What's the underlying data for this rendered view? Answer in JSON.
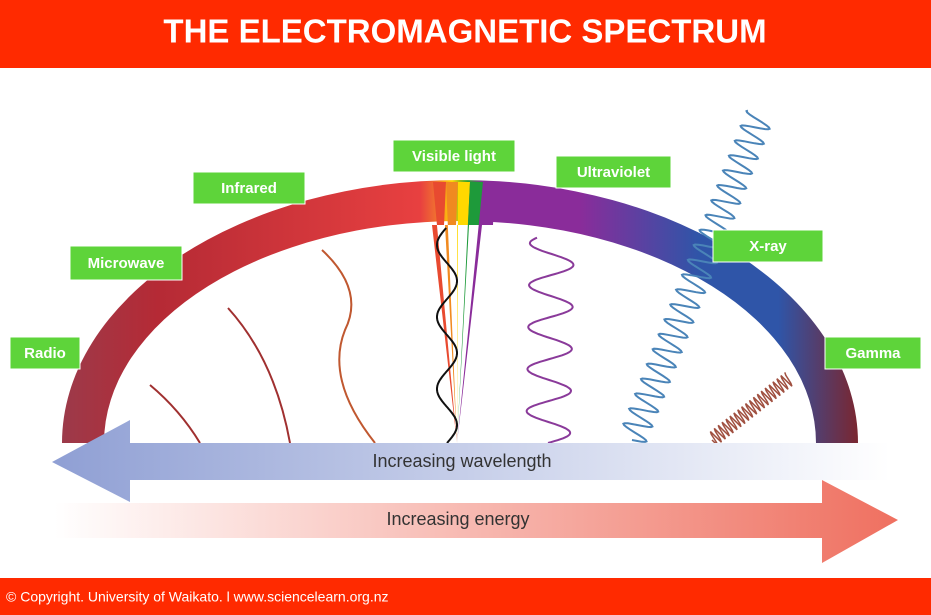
{
  "header": {
    "title": "THE ELECTROMAGNETIC SPECTRUM"
  },
  "labels": [
    "Radio",
    "Microwave",
    "Infrared",
    "Visible light",
    "Ultraviolet",
    "X-ray",
    "Gamma"
  ],
  "arrows": {
    "wavelength": "Increasing wavelength",
    "energy": "Increasing energy"
  },
  "footer": {
    "text": "© Copyright. University of Waikato. l www.sciencelearn.org.nz"
  }
}
